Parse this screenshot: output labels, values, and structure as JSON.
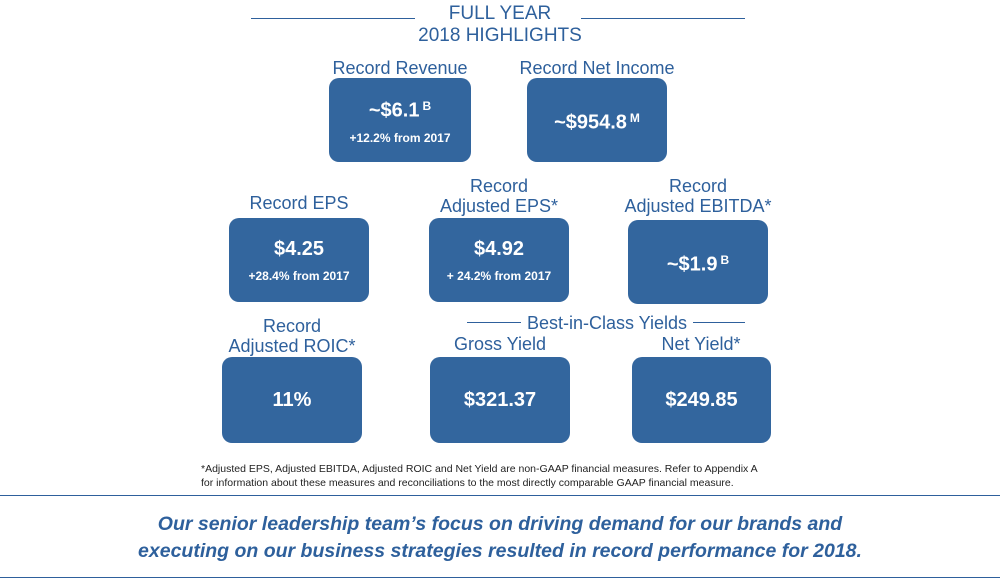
{
  "header": {
    "title_line1": "FULL YEAR",
    "title_line2": "2018 HIGHLIGHTS"
  },
  "highlights": {
    "revenue": {
      "label": "Record Revenue",
      "value": "~$6.1",
      "unit": "B",
      "change": "+12.2% from 2017"
    },
    "net_income": {
      "label": "Record Net Income",
      "value": "~$954.8",
      "unit": "M"
    },
    "eps": {
      "label": "Record EPS",
      "value": "$4.25",
      "change": "+28.4% from 2017"
    },
    "adjusted_eps": {
      "label_line1": "Record",
      "label_line2": "Adjusted EPS*",
      "value": "$4.92",
      "change": "+ 24.2% from 2017"
    },
    "adjusted_ebitda": {
      "label_line1": "Record",
      "label_line2": "Adjusted EBITDA*",
      "value": "~$1.9",
      "unit": "B"
    },
    "adjusted_roic": {
      "label_line1": "Record",
      "label_line2": "Adjusted ROIC*",
      "value": "11%"
    }
  },
  "yields": {
    "heading": "Best-in-Class Yields",
    "gross": {
      "label": "Gross Yield",
      "value": "$321.37"
    },
    "net": {
      "label": "Net Yield*",
      "value": "$249.85"
    }
  },
  "footnote": {
    "line1": "*Adjusted EPS, Adjusted EBITDA, Adjusted ROIC and Net Yield are non-GAAP financial measures. Refer to Appendix A",
    "line2": "for information about these measures and reconciliations to the most directly comparable GAAP financial measure."
  },
  "closing": {
    "line1": "Our senior leadership team’s focus on driving demand for our brands and",
    "line2": "executing on our business strategies resulted in record performance for 2018."
  },
  "colors": {
    "brand_blue": "#2e609c",
    "box_fill": "#33669e"
  }
}
